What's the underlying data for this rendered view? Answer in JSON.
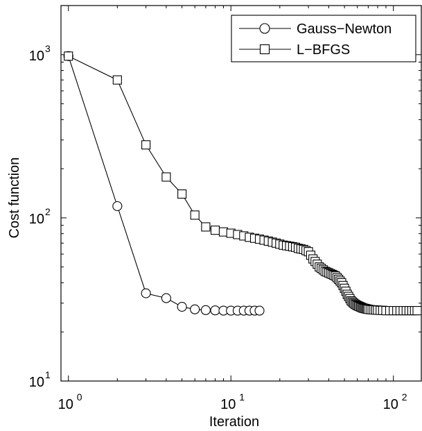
{
  "chart_data": {
    "type": "line",
    "xscale": "log",
    "yscale": "log",
    "xlabel": "Iteration",
    "ylabel": "Cost function",
    "xlim": [
      0.9,
      150
    ],
    "ylim": [
      10,
      2000
    ],
    "x_ticks": [
      {
        "value": 1,
        "base": "10",
        "exp": "0"
      },
      {
        "value": 10,
        "base": "10",
        "exp": "1"
      },
      {
        "value": 100,
        "base": "10",
        "exp": "2"
      }
    ],
    "y_ticks": [
      {
        "value": 10,
        "base": "10",
        "exp": "1"
      },
      {
        "value": 100,
        "base": "10",
        "exp": "2"
      },
      {
        "value": 1000,
        "base": "10",
        "exp": "3"
      }
    ],
    "grid": false,
    "legend_position": "top-right",
    "series": [
      {
        "name": "Gauss−Newton",
        "marker": "circle",
        "x": [
          1,
          2,
          3,
          4,
          5,
          6,
          7,
          8,
          9,
          10,
          11,
          12,
          13,
          14,
          15
        ],
        "y": [
          980,
          118,
          34.5,
          32.2,
          28.5,
          27.5,
          27.2,
          27.1,
          27.0,
          27.0,
          27.0,
          27.0,
          27.0,
          27.0,
          27.0
        ]
      },
      {
        "name": "L−BFGS",
        "marker": "square",
        "x": [
          1,
          2,
          3,
          4,
          5,
          6,
          7,
          8,
          9,
          10,
          11,
          12,
          13,
          14,
          15,
          16,
          17,
          18,
          19,
          20,
          21,
          22,
          23,
          24,
          25,
          26,
          27,
          28,
          29,
          30,
          31,
          32,
          33,
          34,
          35,
          36,
          37,
          38,
          39,
          40,
          41,
          42,
          43,
          44,
          45,
          46,
          47,
          48,
          49,
          50,
          51,
          52,
          53,
          54,
          55,
          56,
          57,
          58,
          59,
          60,
          61,
          62,
          63,
          64,
          65,
          66,
          67,
          68,
          69,
          70,
          72,
          74,
          76,
          78,
          80,
          83,
          86,
          90,
          95,
          100,
          105,
          110,
          115,
          120,
          125,
          130,
          135,
          140
        ],
        "y": [
          980,
          700,
          280,
          178,
          140,
          104,
          88,
          84,
          82,
          80.5,
          79,
          77.5,
          76,
          75,
          74,
          73,
          72,
          71,
          70,
          69,
          68,
          67.5,
          67,
          66.5,
          66,
          65,
          64.5,
          64,
          63,
          62,
          59,
          56,
          54,
          52,
          50,
          49,
          48,
          47,
          46.5,
          46,
          45.5,
          45,
          44.5,
          44,
          43,
          42,
          41,
          40,
          38.5,
          37,
          35.5,
          34,
          33,
          32,
          31,
          30.5,
          30,
          29.6,
          29.3,
          29,
          28.8,
          28.6,
          28.4,
          28.2,
          28.0,
          27.9,
          27.8,
          27.7,
          27.6,
          27.5,
          27.4,
          27.3,
          27.3,
          27.2,
          27.2,
          27.1,
          27.1,
          27.0,
          27.0,
          27.0,
          27.0,
          27.0,
          27.0,
          27.0,
          27.0,
          27.0,
          27.0,
          27.0
        ]
      }
    ]
  }
}
